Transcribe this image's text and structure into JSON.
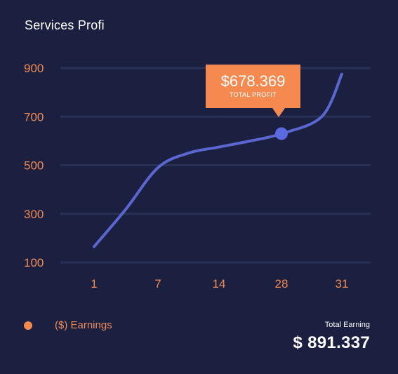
{
  "card": {
    "title": "Services Profi"
  },
  "tooltip": {
    "value": "$678.369",
    "label": "TOTAL PROFIT"
  },
  "legend": {
    "label": "($) Earnings"
  },
  "total": {
    "label": "Total Earning",
    "value": "$ 891.337"
  },
  "colors": {
    "background": "#1b2040",
    "line": "#5b67d0",
    "accent": "#f58a50",
    "grid": "#283055"
  },
  "chart_data": {
    "type": "line",
    "x_ticks": [
      "1",
      "7",
      "14",
      "28",
      "31"
    ],
    "y_ticks": [
      "100",
      "300",
      "500",
      "700",
      "900"
    ],
    "ylim": [
      100,
      900
    ],
    "grid": "horizontal",
    "series": [
      {
        "name": "($) Earnings",
        "points": [
          {
            "x": 1,
            "y": 165
          },
          {
            "x": 4,
            "y": 320
          },
          {
            "x": 7,
            "y": 490
          },
          {
            "x": 10.5,
            "y": 550
          },
          {
            "x": 14,
            "y": 575
          },
          {
            "x": 21,
            "y": 600
          },
          {
            "x": 28,
            "y": 630
          },
          {
            "x": 30,
            "y": 700
          },
          {
            "x": 31,
            "y": 875
          }
        ]
      }
    ],
    "highlight": {
      "x": 28,
      "y": 630
    }
  }
}
